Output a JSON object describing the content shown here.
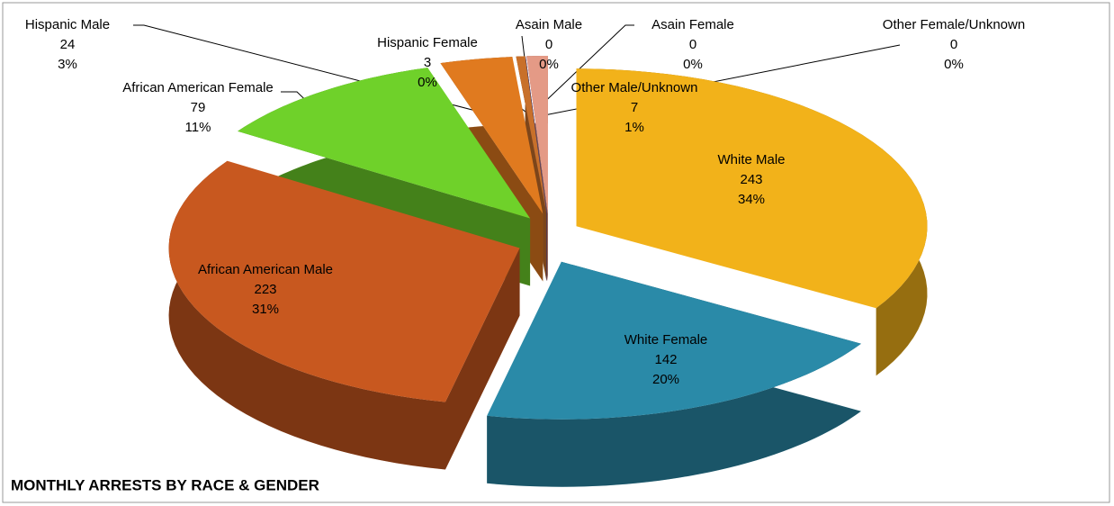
{
  "chart_data": {
    "type": "pie3d",
    "title": "MONTHLY ARRESTS BY RACE & GENDER",
    "categories": [
      "White Male",
      "White Female",
      "African American Male",
      "African American Female",
      "Hispanic Male",
      "Hispanic Female",
      "Asain Male",
      "Asain Female",
      "Other Male/Unknown",
      "Other Female/Unknown"
    ],
    "values": [
      243,
      142,
      223,
      79,
      24,
      3,
      0,
      0,
      7,
      0
    ],
    "percent_labels": [
      "34%",
      "20%",
      "31%",
      "11%",
      "3%",
      "0%",
      "0%",
      "0%",
      "1%",
      "0%"
    ],
    "colors": [
      "#f2b21a",
      "#2a8aa8",
      "#c8581f",
      "#6fd12a",
      "#e07a1f",
      "#c8702a",
      "#7a2fa8",
      "#4a4aa8",
      "#e49a86",
      "#b0b0b0"
    ]
  }
}
